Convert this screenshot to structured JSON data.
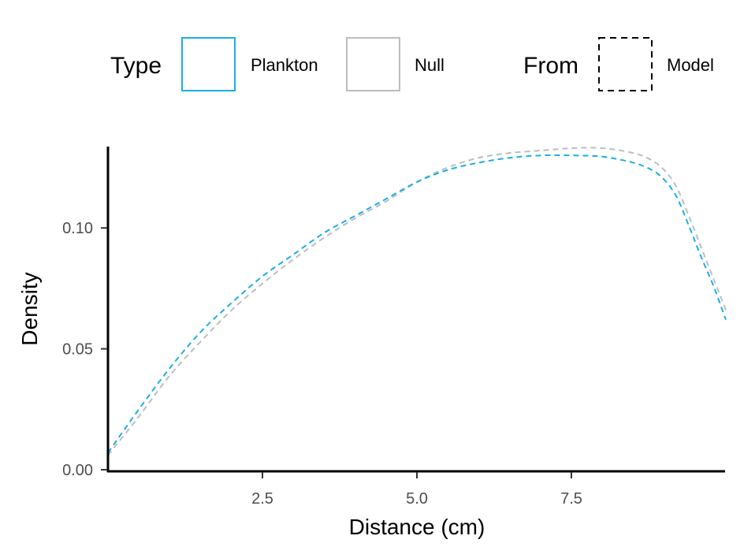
{
  "chart_data": {
    "type": "line",
    "xlabel": "Distance (cm)",
    "ylabel": "Density",
    "xlim": [
      0,
      10
    ],
    "ylim": [
      0,
      0.133
    ],
    "x_ticks": [
      {
        "value": 2.5,
        "label": "2.5"
      },
      {
        "value": 5.0,
        "label": "5.0"
      },
      {
        "value": 7.5,
        "label": "7.5"
      }
    ],
    "y_ticks": [
      {
        "value": 0.0,
        "label": "0.00"
      },
      {
        "value": 0.05,
        "label": "0.05"
      },
      {
        "value": 0.1,
        "label": "0.10"
      }
    ],
    "grid": false,
    "legend": {
      "position": "top",
      "groups": [
        {
          "title": "Type",
          "entries": [
            {
              "label": "Plankton",
              "color": "#1aaee8"
            },
            {
              "label": "Null",
              "color": "#bdbdbd"
            }
          ]
        },
        {
          "title": "From",
          "entries": [
            {
              "label": "Model",
              "linetype": "dashed",
              "color": "#000000"
            }
          ]
        }
      ]
    },
    "series": [
      {
        "name": "Plankton",
        "color": "#1aaee8",
        "linetype": "dashed",
        "x": [
          0.0,
          0.5,
          1.0,
          1.5,
          2.0,
          2.5,
          3.0,
          3.5,
          4.0,
          4.5,
          5.0,
          5.5,
          6.0,
          6.5,
          7.0,
          7.5,
          8.0,
          8.5,
          8.8,
          9.0,
          9.2,
          9.4,
          9.6,
          9.8,
          10.0
        ],
        "y": [
          0.007,
          0.025,
          0.042,
          0.057,
          0.069,
          0.08,
          0.089,
          0.098,
          0.105,
          0.112,
          0.119,
          0.124,
          0.127,
          0.129,
          0.13,
          0.13,
          0.1295,
          0.127,
          0.124,
          0.12,
          0.113,
          0.101,
          0.088,
          0.076,
          0.062
        ]
      },
      {
        "name": "Null",
        "color": "#bdbdbd",
        "linetype": "dashed",
        "x": [
          0.0,
          0.5,
          1.0,
          1.5,
          2.0,
          2.5,
          3.0,
          3.5,
          4.0,
          4.5,
          5.0,
          5.5,
          6.0,
          6.5,
          7.0,
          7.5,
          8.0,
          8.5,
          8.8,
          9.0,
          9.2,
          9.4,
          9.6,
          9.8,
          10.0
        ],
        "y": [
          0.006,
          0.022,
          0.039,
          0.053,
          0.066,
          0.077,
          0.087,
          0.096,
          0.104,
          0.111,
          0.119,
          0.125,
          0.129,
          0.131,
          0.132,
          0.133,
          0.133,
          0.131,
          0.128,
          0.124,
          0.117,
          0.105,
          0.092,
          0.079,
          0.066
        ]
      }
    ]
  }
}
